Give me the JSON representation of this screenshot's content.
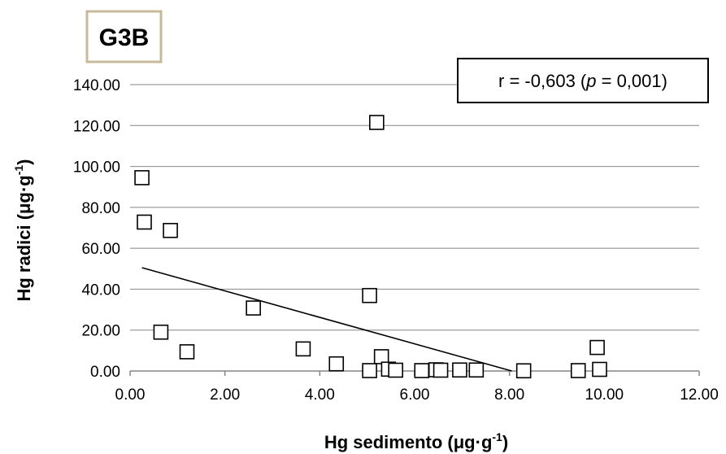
{
  "chart_data": {
    "type": "scatter",
    "title": "G3B",
    "xlabel": "Hg sedimento (μg·g",
    "xlabel_sup": "-1",
    "xlabel_end": ")",
    "ylabel": "Hg radici (μg·g",
    "ylabel_sup": "-1",
    "ylabel_end": ")",
    "annotation": {
      "prefix": "r = -0,603 (",
      "p_symbol": "p",
      "suffix": " = 0,001)"
    },
    "xlim": [
      0,
      12
    ],
    "ylim": [
      0,
      140
    ],
    "x_ticks": [
      "0.00",
      "2.00",
      "4.00",
      "6.00",
      "8.00",
      "10.00",
      "12.00"
    ],
    "y_ticks": [
      "0.00",
      "20.00",
      "40.00",
      "60.00",
      "80.00",
      "100.00",
      "120.00",
      "140.00"
    ],
    "grid": true,
    "marker": "open-square",
    "points": [
      {
        "x": 0.25,
        "y": 94.5
      },
      {
        "x": 0.3,
        "y": 72.8
      },
      {
        "x": 0.85,
        "y": 68.7
      },
      {
        "x": 0.65,
        "y": 19.0
      },
      {
        "x": 1.2,
        "y": 9.4
      },
      {
        "x": 2.6,
        "y": 30.8
      },
      {
        "x": 3.65,
        "y": 10.8
      },
      {
        "x": 4.35,
        "y": 3.5
      },
      {
        "x": 5.05,
        "y": 36.9
      },
      {
        "x": 5.2,
        "y": 121.5
      },
      {
        "x": 5.3,
        "y": 7.0
      },
      {
        "x": 5.05,
        "y": 0.2
      },
      {
        "x": 5.45,
        "y": 0.9
      },
      {
        "x": 5.6,
        "y": 0.4
      },
      {
        "x": 6.15,
        "y": 0.2
      },
      {
        "x": 6.45,
        "y": 0.6
      },
      {
        "x": 6.55,
        "y": 0.4
      },
      {
        "x": 6.95,
        "y": 0.5
      },
      {
        "x": 7.3,
        "y": 0.5
      },
      {
        "x": 8.3,
        "y": 0.1
      },
      {
        "x": 9.45,
        "y": 0.2
      },
      {
        "x": 9.85,
        "y": 11.5
      },
      {
        "x": 9.9,
        "y": 0.8
      }
    ],
    "trendline": {
      "x": [
        0.25,
        8.05
      ],
      "y": [
        50.5,
        0.0
      ]
    }
  }
}
